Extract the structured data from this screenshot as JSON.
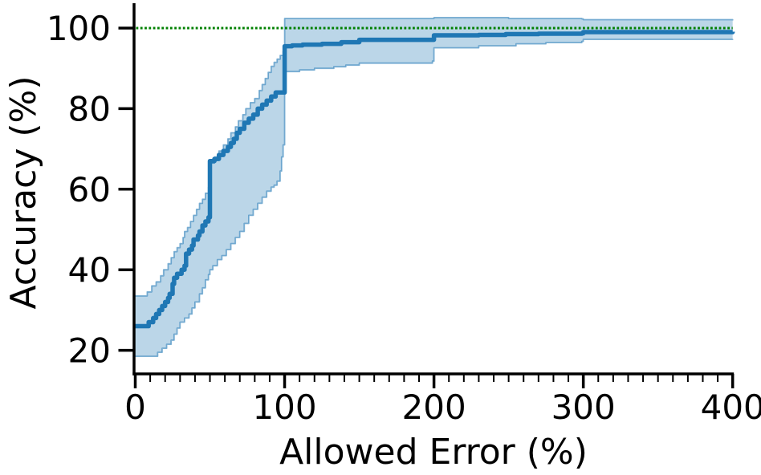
{
  "chart_data": {
    "type": "line",
    "title": "",
    "xlabel": "Allowed Error (%)",
    "ylabel": "Accuracy (%)",
    "xlim": [
      0,
      400
    ],
    "ylim": [
      14,
      106
    ],
    "x_ticks": [
      0,
      100,
      200,
      300,
      400
    ],
    "x_tick_labels": [
      "0",
      "100",
      "200",
      "300",
      "400"
    ],
    "x_minor_tick_step": 10,
    "y_ticks": [
      20,
      40,
      60,
      80,
      100
    ],
    "y_tick_labels": [
      "20",
      "40",
      "60",
      "80",
      "100"
    ],
    "grid": false,
    "legend_position": "none",
    "reference_line": {
      "y": 100,
      "style": "dotted",
      "color": "#008000"
    },
    "colors": {
      "line": "#1f77b4",
      "band_fill": "rgba(31,119,180,0.30)",
      "band_edge": "rgba(31,119,180,0.55)",
      "reference": "#008000",
      "axis": "#000000"
    },
    "series": [
      {
        "name": "median accuracy",
        "interpolation": "step-after",
        "points": [
          [
            0,
            26
          ],
          [
            8,
            26
          ],
          [
            9,
            27
          ],
          [
            12,
            28
          ],
          [
            14,
            29
          ],
          [
            16,
            30
          ],
          [
            18,
            31
          ],
          [
            20,
            32
          ],
          [
            22,
            33
          ],
          [
            23,
            34
          ],
          [
            25,
            36.5
          ],
          [
            26,
            38
          ],
          [
            28,
            39
          ],
          [
            31,
            40
          ],
          [
            33,
            41
          ],
          [
            34,
            44
          ],
          [
            36,
            45
          ],
          [
            38,
            46
          ],
          [
            39,
            47.5
          ],
          [
            42,
            48.5
          ],
          [
            43,
            49.5
          ],
          [
            45,
            51
          ],
          [
            47,
            52
          ],
          [
            49,
            53
          ],
          [
            50,
            53
          ],
          [
            50,
            67
          ],
          [
            53,
            67.5
          ],
          [
            56,
            68.5
          ],
          [
            59,
            69.5
          ],
          [
            62,
            70.5
          ],
          [
            64,
            71.5
          ],
          [
            66,
            72.5
          ],
          [
            68,
            74
          ],
          [
            70,
            75
          ],
          [
            73,
            76.5
          ],
          [
            76,
            77.5
          ],
          [
            79,
            78.5
          ],
          [
            82,
            80
          ],
          [
            85,
            81
          ],
          [
            88,
            82
          ],
          [
            91,
            83
          ],
          [
            94,
            84
          ],
          [
            100,
            84
          ],
          [
            100,
            95.5
          ],
          [
            105,
            95.7
          ],
          [
            112,
            95.9
          ],
          [
            125,
            96.1
          ],
          [
            138,
            96.5
          ],
          [
            150,
            97.1
          ],
          [
            199,
            97.1
          ],
          [
            200,
            98.2
          ],
          [
            230,
            98.3
          ],
          [
            248,
            98.5
          ],
          [
            270,
            98.6
          ],
          [
            299,
            98.7
          ],
          [
            300,
            99
          ],
          [
            350,
            99
          ],
          [
            400,
            99.1
          ]
        ]
      }
    ],
    "band": {
      "name": "confidence band",
      "lower": [
        [
          0,
          18.5
        ],
        [
          13,
          18.5
        ],
        [
          15,
          19.5
        ],
        [
          18,
          20.5
        ],
        [
          21,
          21.5
        ],
        [
          24,
          22.5
        ],
        [
          26,
          24
        ],
        [
          28,
          25.5
        ],
        [
          30,
          27
        ],
        [
          33,
          28
        ],
        [
          36,
          29
        ],
        [
          38,
          30.5
        ],
        [
          40,
          32
        ],
        [
          43,
          34
        ],
        [
          45,
          35.5
        ],
        [
          47,
          37.5
        ],
        [
          49,
          38.8
        ],
        [
          50,
          40
        ],
        [
          52,
          41
        ],
        [
          55,
          42.5
        ],
        [
          58,
          43.5
        ],
        [
          61,
          45
        ],
        [
          64,
          46.5
        ],
        [
          67,
          48
        ],
        [
          70,
          49.5
        ],
        [
          73,
          51.5
        ],
        [
          76,
          53.5
        ],
        [
          79,
          55
        ],
        [
          82,
          56.5
        ],
        [
          85,
          58
        ],
        [
          88,
          59.5
        ],
        [
          91,
          60.5
        ],
        [
          93,
          61
        ],
        [
          95,
          62
        ],
        [
          97,
          64.5
        ],
        [
          98,
          68
        ],
        [
          99,
          71
        ],
        [
          100,
          71.8
        ],
        [
          100,
          89.2
        ],
        [
          110,
          89.6
        ],
        [
          120,
          90
        ],
        [
          133,
          90.4
        ],
        [
          141,
          90.8
        ],
        [
          150,
          91.3
        ],
        [
          199,
          91.8
        ],
        [
          200,
          95.1
        ],
        [
          230,
          95.6
        ],
        [
          255,
          96.1
        ],
        [
          275,
          96.4
        ],
        [
          299,
          96.7
        ],
        [
          300,
          97.2
        ],
        [
          400,
          97.3
        ]
      ],
      "upper": [
        [
          0,
          33.5
        ],
        [
          6,
          33.5
        ],
        [
          8,
          34.5
        ],
        [
          11,
          36
        ],
        [
          14,
          37
        ],
        [
          17,
          38.5
        ],
        [
          19,
          40
        ],
        [
          22,
          41.5
        ],
        [
          24,
          43
        ],
        [
          26,
          44.5
        ],
        [
          28,
          45.5
        ],
        [
          30,
          46.5
        ],
        [
          32,
          48
        ],
        [
          33,
          49.5
        ],
        [
          35,
          50.5
        ],
        [
          37,
          52
        ],
        [
          39,
          53.5
        ],
        [
          41,
          55
        ],
        [
          43,
          56.5
        ],
        [
          45,
          57.5
        ],
        [
          47,
          59
        ],
        [
          49,
          60.5
        ],
        [
          50,
          62.5
        ],
        [
          50,
          66.5
        ],
        [
          53,
          68
        ],
        [
          56,
          69.5
        ],
        [
          59,
          71
        ],
        [
          62,
          72.5
        ],
        [
          64,
          74
        ],
        [
          67,
          75.5
        ],
        [
          69,
          77
        ],
        [
          72,
          78.5
        ],
        [
          74,
          80
        ],
        [
          77,
          81.5
        ],
        [
          80,
          82.5
        ],
        [
          83,
          84.5
        ],
        [
          85,
          86
        ],
        [
          87,
          87.5
        ],
        [
          89,
          89
        ],
        [
          91,
          90.5
        ],
        [
          93,
          91.5
        ],
        [
          95,
          92.3
        ],
        [
          97,
          93.2
        ],
        [
          99,
          94.2
        ],
        [
          100,
          94.8
        ],
        [
          100,
          102.4
        ],
        [
          150,
          102.4
        ],
        [
          200,
          102.6
        ],
        [
          250,
          102.4
        ],
        [
          299,
          102.3
        ],
        [
          300,
          102.1
        ],
        [
          400,
          101.9
        ]
      ]
    }
  }
}
